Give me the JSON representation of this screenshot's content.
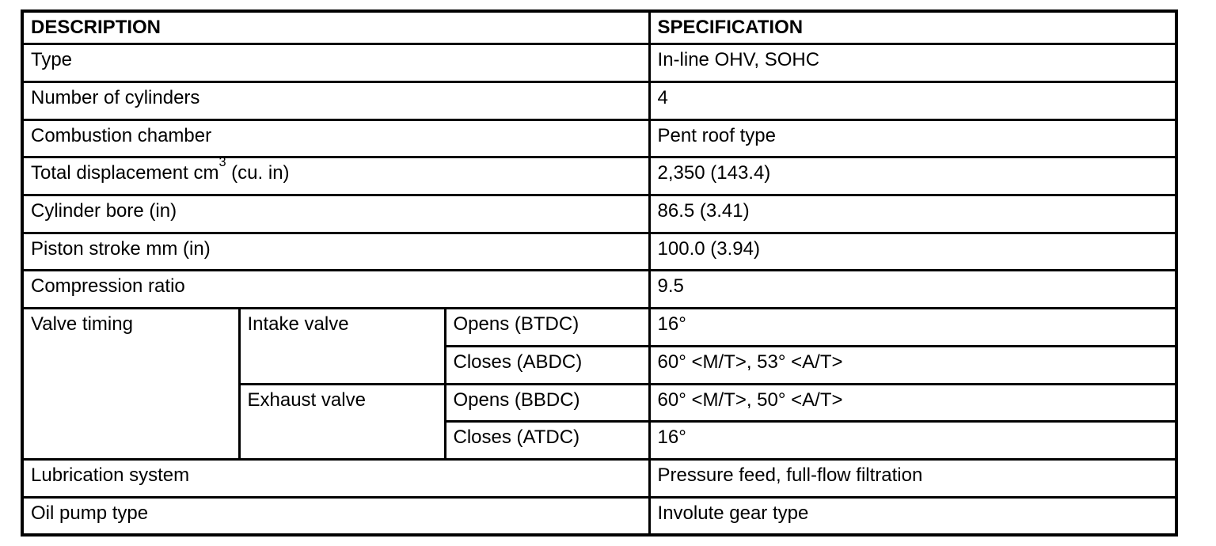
{
  "table": {
    "header": {
      "description": "DESCRIPTION",
      "specification": "SPECIFICATION"
    },
    "rows": [
      {
        "desc": "Type",
        "spec": "In-line OHV, SOHC"
      },
      {
        "desc": "Number of cylinders",
        "spec": "4"
      },
      {
        "desc": "Combustion chamber",
        "spec": "Pent roof type"
      },
      {
        "desc_pre": "Total displacement cm",
        "desc_sup": "3",
        "desc_post": " (cu. in)",
        "spec": "2,350 (143.4)"
      },
      {
        "desc": "Cylinder bore (in)",
        "spec": "86.5 (3.41)"
      },
      {
        "desc": "Piston stroke mm (in)",
        "spec": "100.0 (3.94)"
      },
      {
        "desc": "Compression ratio",
        "spec": "9.5"
      }
    ],
    "valve_timing": {
      "label": "Valve timing",
      "intake": {
        "label": "Intake valve",
        "opens": {
          "label": "Opens (BTDC)",
          "spec": "16°"
        },
        "closes": {
          "label": "Closes (ABDC)",
          "spec": "60° <M/T>, 53° <A/T>"
        }
      },
      "exhaust": {
        "label": "Exhaust valve",
        "opens": {
          "label": "Opens (BBDC)",
          "spec": "60° <M/T>, 50° <A/T>"
        },
        "closes": {
          "label": "Closes (ATDC)",
          "spec": "16°"
        }
      }
    },
    "bottom_rows": [
      {
        "desc": "Lubrication system",
        "spec": "Pressure feed, full-flow filtration"
      },
      {
        "desc": "Oil pump type",
        "spec": "Involute gear type"
      }
    ]
  }
}
